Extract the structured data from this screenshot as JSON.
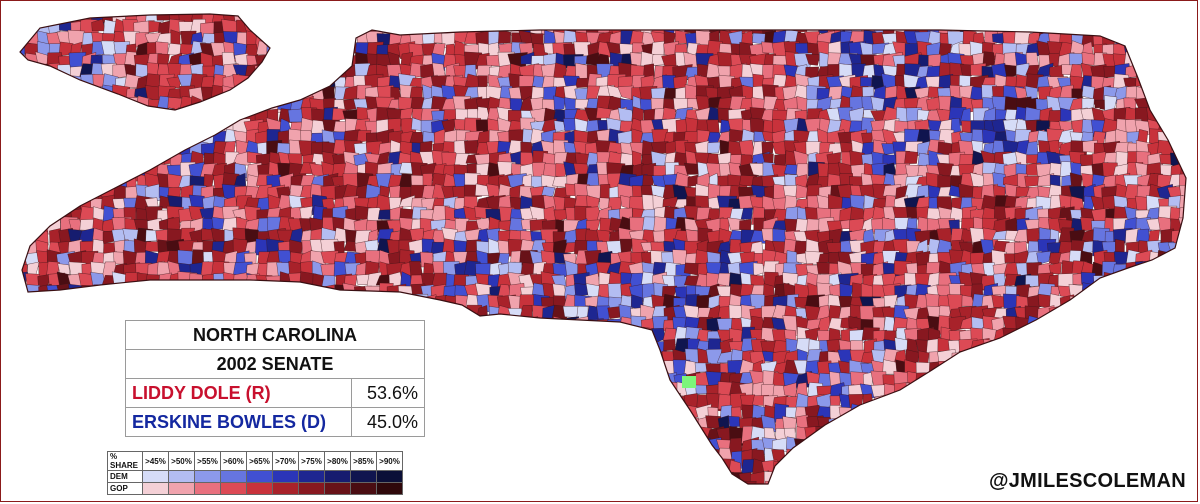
{
  "results": {
    "state": "NORTH CAROLINA",
    "race": "2002 SENATE",
    "candidates": [
      {
        "name": "LIDDY DOLE (R)",
        "pct": "53.6%",
        "party": "R"
      },
      {
        "name": "ERSKINE BOWLES (D)",
        "pct": "45.0%",
        "party": "D"
      }
    ]
  },
  "legend": {
    "header_label": "% SHARE",
    "thresholds": [
      ">45%",
      ">50%",
      ">55%",
      ">60%",
      ">65%",
      ">70%",
      ">75%",
      ">80%",
      ">85%",
      ">90%"
    ],
    "rows": [
      {
        "label": "DEM",
        "colors": [
          "#d6dcf7",
          "#b3bdf2",
          "#8c99ea",
          "#6675e0",
          "#4150d2",
          "#2b35b8",
          "#1e2691",
          "#161c6f",
          "#10154f",
          "#0b0f38"
        ]
      },
      {
        "label": "GOP",
        "colors": [
          "#f4d0d6",
          "#f0a3ad",
          "#e8707e",
          "#dc4a55",
          "#c8323b",
          "#a8222a",
          "#881820",
          "#681218",
          "#4a0d12",
          "#2f080b"
        ]
      }
    ]
  },
  "credit": "@JMILESCOLEMAN",
  "colors": {
    "frame": "#8b1a1a",
    "rep_text": "#c8102e",
    "dem_text": "#1428a0",
    "highlight_precinct": "#7cf57a"
  }
}
